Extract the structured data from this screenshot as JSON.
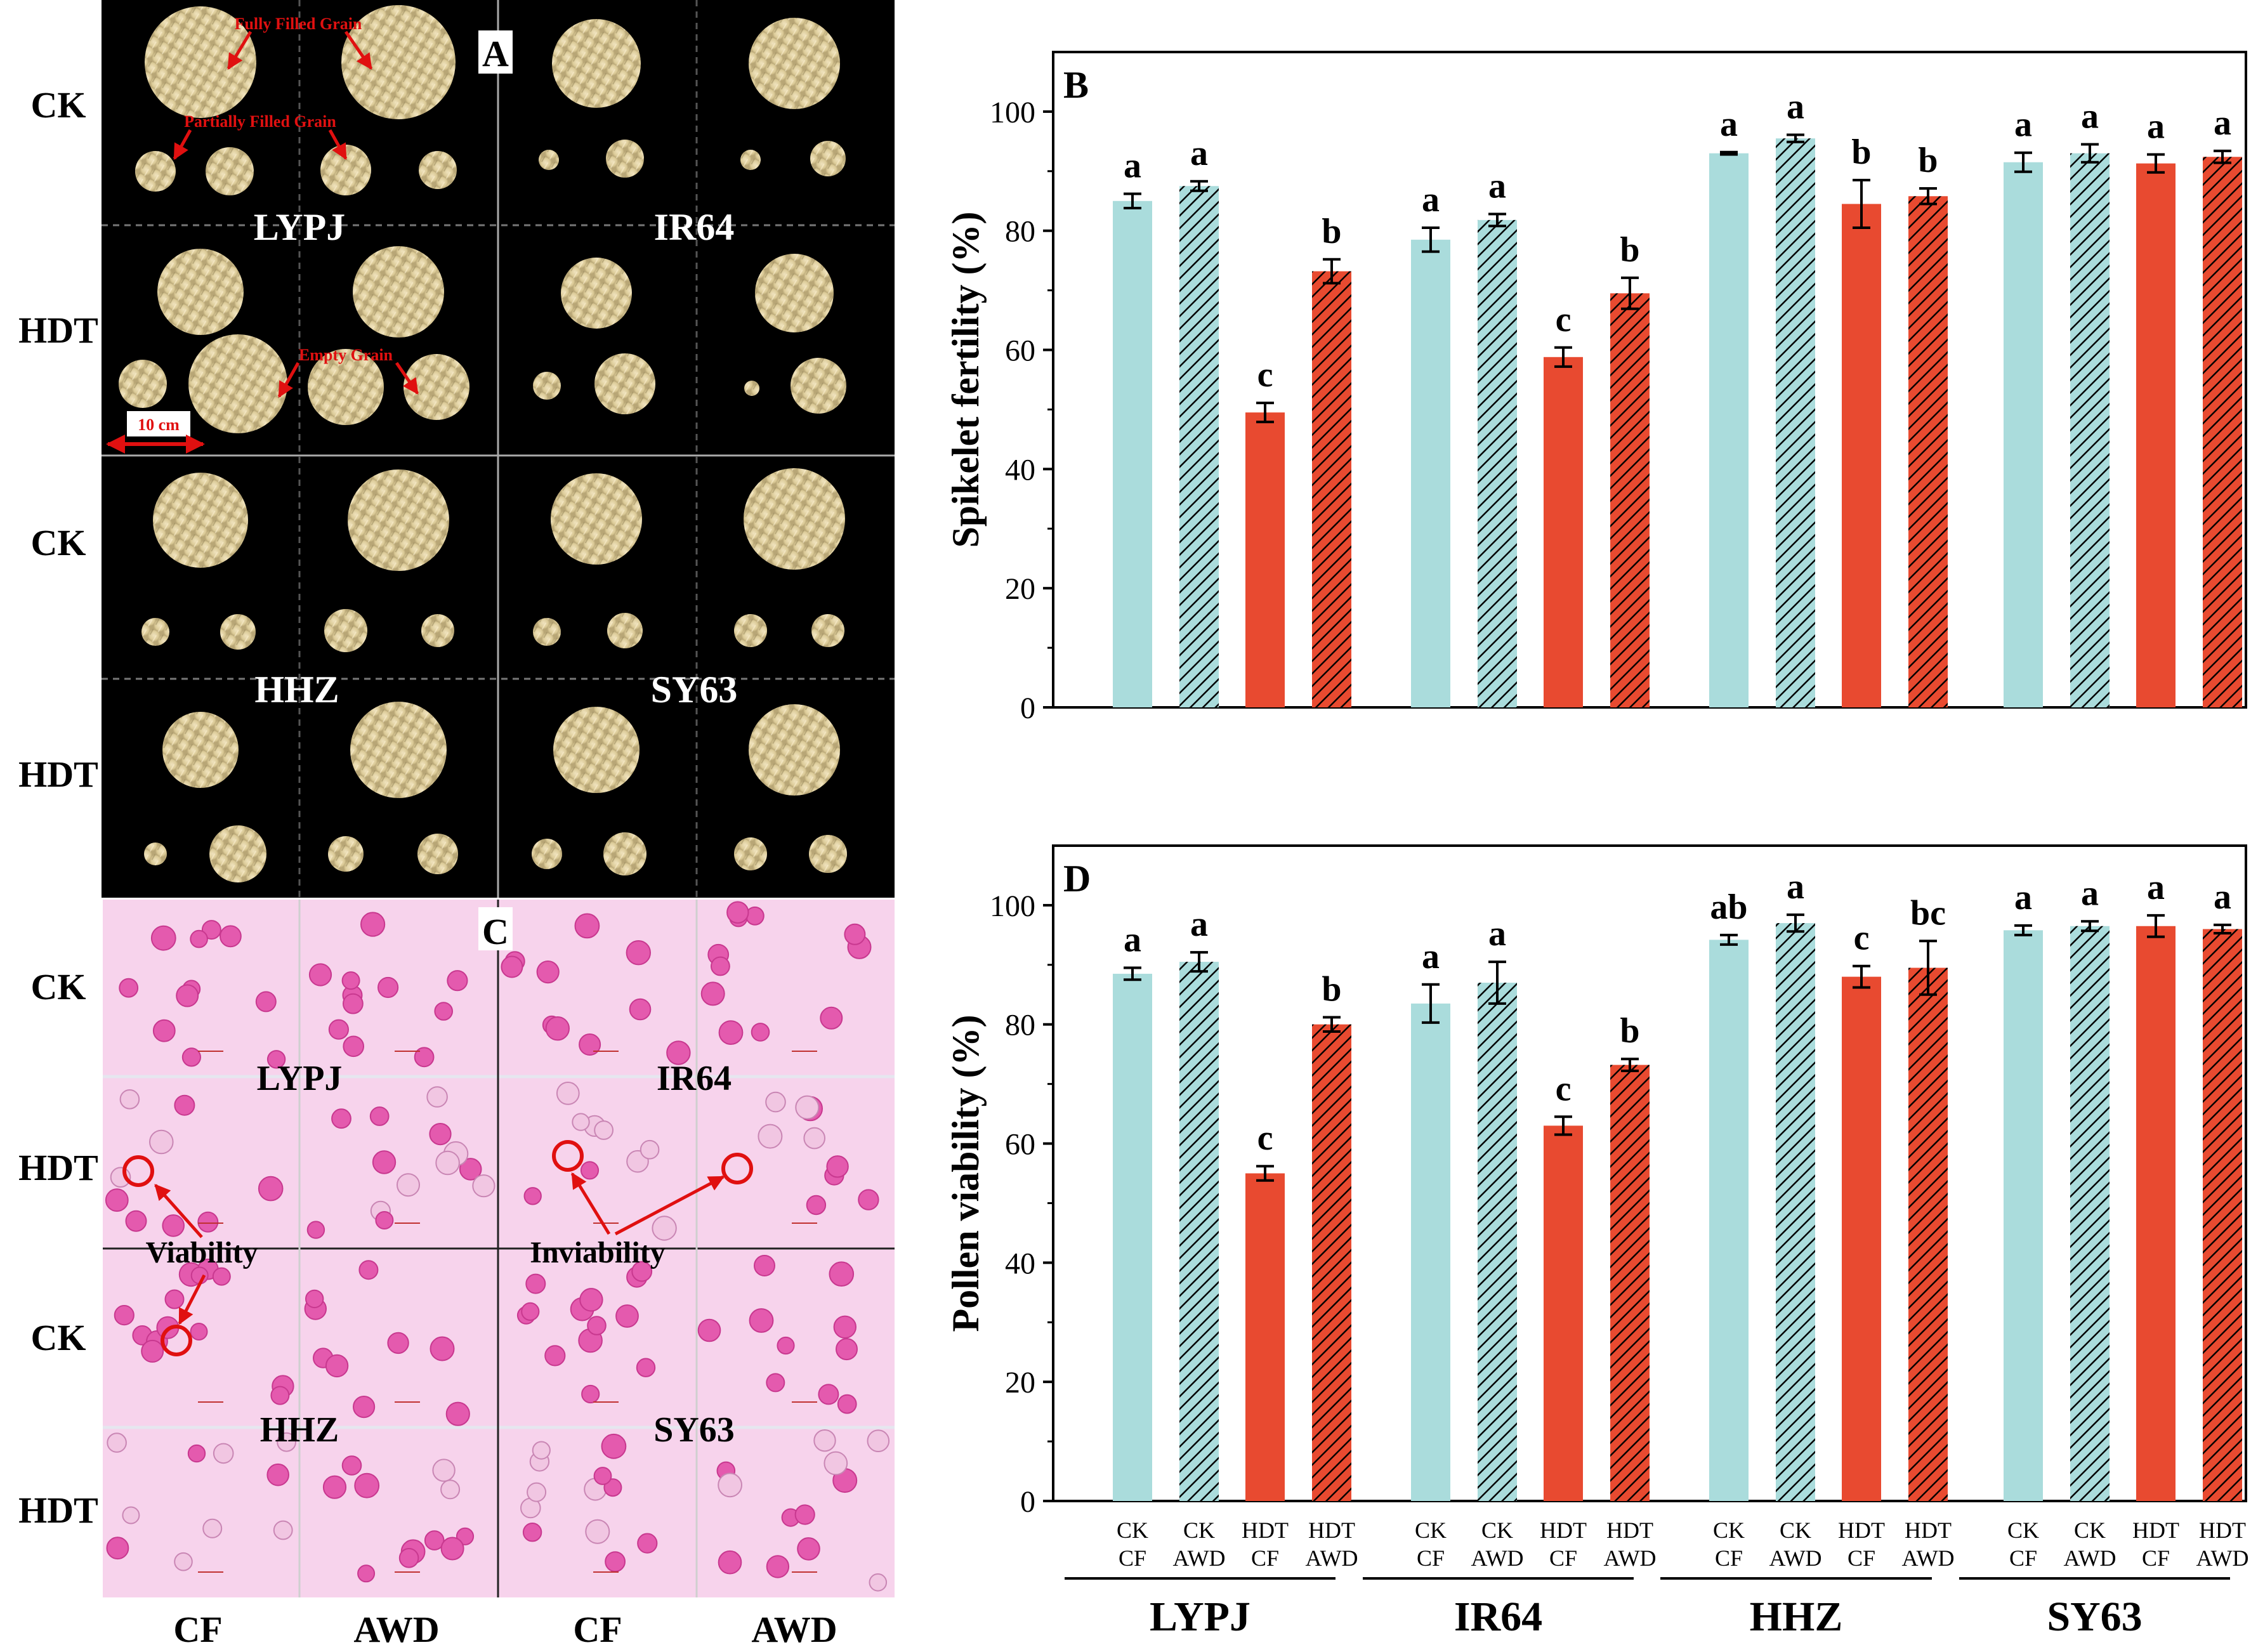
{
  "panel_letters": {
    "a": "A",
    "b": "B",
    "c": "C",
    "d": "D"
  },
  "photo_panels": {
    "row_labels": [
      "CK",
      "HDT",
      "CK",
      "HDT"
    ],
    "column_labels": [
      "CF",
      "AWD",
      "CF",
      "AWD"
    ],
    "panel_a": {
      "cultivars": [
        "LYPJ",
        "IR64",
        "HHZ",
        "SY63"
      ],
      "annotations": {
        "fully_filled": "Fully Filled Grain",
        "partially_filled": "Partially Filled Grain",
        "empty": "Empty Grain",
        "scale_bar": "10 cm"
      }
    },
    "panel_c": {
      "cultivars": [
        "LYPJ",
        "IR64",
        "HHZ",
        "SY63"
      ],
      "annotations": {
        "viability": "Viability",
        "inviability": "Inviability"
      }
    }
  },
  "chart_data": [
    {
      "id": "B",
      "type": "bar",
      "title": "",
      "ylabel": "Spikelet fertility (%)",
      "ylim": [
        0,
        110
      ],
      "yticks": [
        0,
        20,
        40,
        60,
        80,
        100
      ],
      "groups": [
        "LYPJ",
        "IR64",
        "HHZ",
        "SY63"
      ],
      "treatments": [
        "CK CF",
        "CK AWD",
        "HDT CF",
        "HDT AWD"
      ],
      "series": [
        {
          "name": "CK CF",
          "color": "#aadcdc",
          "hatched": false,
          "values": [
            85.0,
            78.5,
            93.0,
            91.5
          ],
          "errors": [
            1.2,
            2.0,
            0.2,
            1.6
          ],
          "letters": [
            "a",
            "a",
            "a",
            "a"
          ]
        },
        {
          "name": "CK AWD",
          "color": "#aadcdc",
          "hatched": true,
          "values": [
            87.5,
            81.8,
            95.5,
            93.0
          ],
          "errors": [
            0.8,
            1.0,
            0.6,
            1.5
          ],
          "letters": [
            "a",
            "a",
            "a",
            "a"
          ]
        },
        {
          "name": "HDT CF",
          "color": "#e84a30",
          "hatched": false,
          "values": [
            49.5,
            58.8,
            84.5,
            91.3
          ],
          "errors": [
            1.6,
            1.6,
            4.0,
            1.5
          ],
          "letters": [
            "c",
            "c",
            "b",
            "a"
          ]
        },
        {
          "name": "HDT AWD",
          "color": "#e84a30",
          "hatched": true,
          "values": [
            73.2,
            69.5,
            85.8,
            92.4
          ],
          "errors": [
            2.0,
            2.6,
            1.3,
            1.0
          ],
          "letters": [
            "b",
            "b",
            "b",
            "a"
          ]
        }
      ]
    },
    {
      "id": "D",
      "type": "bar",
      "title": "",
      "ylabel": "Pollen viability (%)",
      "ylim": [
        0,
        110
      ],
      "yticks": [
        0,
        20,
        40,
        60,
        80,
        100
      ],
      "groups": [
        "LYPJ",
        "IR64",
        "HHZ",
        "SY63"
      ],
      "treatments": [
        "CK CF",
        "CK AWD",
        "HDT CF",
        "HDT AWD"
      ],
      "x_tick_lines": [
        [
          "CK",
          "CF"
        ],
        [
          "CK",
          "AWD"
        ],
        [
          "HDT",
          "CF"
        ],
        [
          "HDT",
          "AWD"
        ]
      ],
      "series": [
        {
          "name": "CK CF",
          "color": "#aadcdc",
          "hatched": false,
          "values": [
            88.5,
            83.5,
            94.2,
            95.8
          ],
          "errors": [
            1.0,
            3.2,
            0.8,
            0.8
          ],
          "letters": [
            "a",
            "a",
            "ab",
            "a"
          ]
        },
        {
          "name": "CK AWD",
          "color": "#aadcdc",
          "hatched": true,
          "values": [
            90.5,
            87.0,
            97.0,
            96.5
          ],
          "errors": [
            1.6,
            3.5,
            1.4,
            0.8
          ],
          "letters": [
            "a",
            "a",
            "a",
            "a"
          ]
        },
        {
          "name": "HDT CF",
          "color": "#e84a30",
          "hatched": false,
          "values": [
            55.0,
            63.0,
            88.0,
            96.5
          ],
          "errors": [
            1.2,
            1.5,
            1.8,
            1.8
          ],
          "letters": [
            "c",
            "c",
            "c",
            "a"
          ]
        },
        {
          "name": "HDT AWD",
          "color": "#e84a30",
          "hatched": true,
          "values": [
            80.0,
            73.2,
            89.5,
            96.0
          ],
          "errors": [
            1.2,
            1.0,
            4.5,
            0.7
          ],
          "letters": [
            "b",
            "b",
            "bc",
            "a"
          ]
        }
      ]
    }
  ]
}
